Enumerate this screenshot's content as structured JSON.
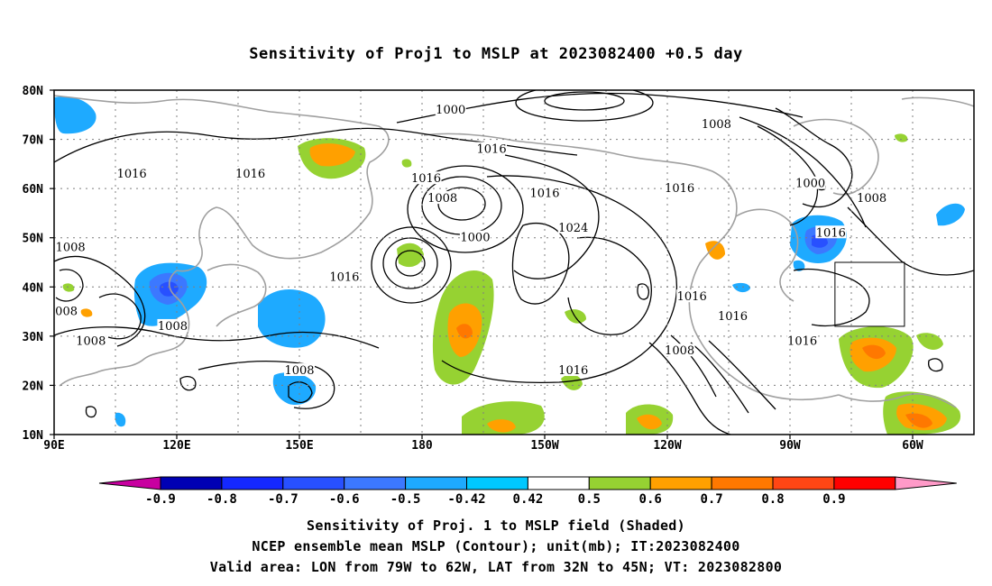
{
  "title": "Sensitivity of Proj1 to MSLP at 2023082400 +0.5 day",
  "map": {
    "lat_labels": [
      "80N",
      "70N",
      "60N",
      "50N",
      "40N",
      "30N",
      "20N",
      "10N"
    ],
    "lon_labels": [
      "90E",
      "120E",
      "150E",
      "180",
      "150W",
      "120W",
      "90W",
      "60W"
    ],
    "contour_labels": [
      {
        "text": "1000",
        "lon": -173,
        "lat": 76
      },
      {
        "text": "1008",
        "lon": -108,
        "lat": 73
      },
      {
        "text": "1016",
        "lon": -163,
        "lat": 68
      },
      {
        "text": "1000",
        "lon": -85,
        "lat": 61
      },
      {
        "text": "1008",
        "lon": -70,
        "lat": 58
      },
      {
        "text": "1016",
        "lon": 109,
        "lat": 63
      },
      {
        "text": "1016",
        "lon": 138,
        "lat": 63
      },
      {
        "text": "1016",
        "lon": -179,
        "lat": 62
      },
      {
        "text": "1008",
        "lon": -175,
        "lat": 58
      },
      {
        "text": "1016",
        "lon": -150,
        "lat": 59
      },
      {
        "text": "1016",
        "lon": -117,
        "lat": 60
      },
      {
        "text": "1024",
        "lon": -143,
        "lat": 52
      },
      {
        "text": "1000",
        "lon": -167,
        "lat": 50
      },
      {
        "text": "1016",
        "lon": -80,
        "lat": 51
      },
      {
        "text": "1008",
        "lon": 94,
        "lat": 48
      },
      {
        "text": "1016",
        "lon": 161,
        "lat": 42
      },
      {
        "text": "1016",
        "lon": -114,
        "lat": 38
      },
      {
        "text": "008",
        "lon": 93,
        "lat": 35
      },
      {
        "text": "1016",
        "lon": -104,
        "lat": 34
      },
      {
        "text": "1008",
        "lon": 119,
        "lat": 32
      },
      {
        "text": "1008",
        "lon": 99,
        "lat": 29
      },
      {
        "text": "1016",
        "lon": -87,
        "lat": 29
      },
      {
        "text": "1008",
        "lon": -117,
        "lat": 27
      },
      {
        "text": "1008",
        "lon": 150,
        "lat": 23
      },
      {
        "text": "1016",
        "lon": -143,
        "lat": 23
      }
    ],
    "valid_box": {
      "lon_w": -79,
      "lon_e": -62,
      "lat_s": 32,
      "lat_n": 45
    }
  },
  "colorbar": {
    "tick_labels": [
      "-0.9",
      "-0.8",
      "-0.7",
      "-0.6",
      "-0.5",
      "-0.42",
      "0.42",
      "0.5",
      "0.6",
      "0.7",
      "0.8",
      "0.9"
    ],
    "colors": [
      "#0000b4",
      "#1428ff",
      "#2850ff",
      "#3c78ff",
      "#1eaaff",
      "#00c8ff",
      "#ffffff",
      "#96d232",
      "#ffa000",
      "#ff7800",
      "#ff4614",
      "#ff0000"
    ],
    "low_color": "#c800a0",
    "high_color": "#ff9ac8"
  },
  "captions": [
    "Sensitivity of Proj. 1 to MSLP field (Shaded)",
    "NCEP ensemble mean MSLP (Contour); unit(mb); IT:2023082400",
    "Valid area: LON from 79W to 62W, LAT from 32N to 45N; VT: 2023082800"
  ]
}
